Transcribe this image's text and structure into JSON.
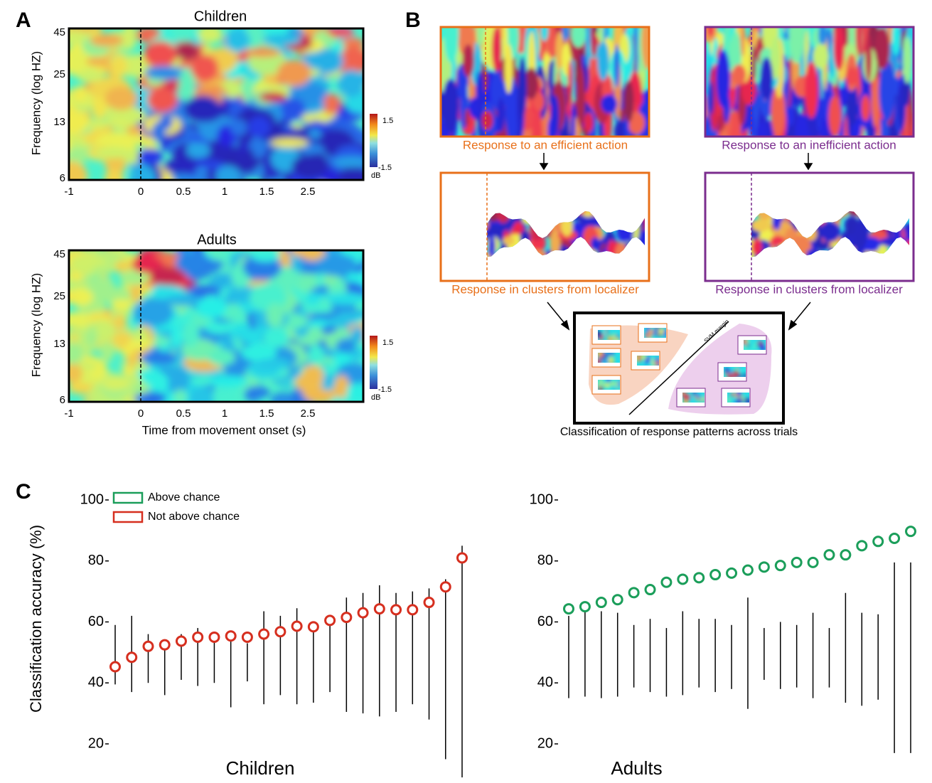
{
  "panel_labels": [
    "A",
    "B",
    "C"
  ],
  "panel_a": {
    "plots": [
      {
        "title": "Children"
      },
      {
        "title": "Adults"
      }
    ],
    "ylabel": "Frequency (log HZ)",
    "yticks": [
      45,
      25,
      13,
      6
    ],
    "xticks": [
      -1,
      0,
      0.5,
      1,
      1.5,
      2.5
    ],
    "xlabel": "Time from movement onset (s)",
    "colorbar": {
      "max": 1.5,
      "min": -1.5,
      "unit": "dB"
    }
  },
  "panel_b": {
    "efficient": "Response to an efficient action",
    "inefficient": "Response to an inefficient action",
    "clusters_efficient": "Response in clusters from localizer",
    "clusters_inefficient": "Response in clusters from localizer",
    "svm": "SVM margin",
    "caption": "Classification of response patterns across trials"
  },
  "chart_data": [
    {
      "type": "scatter",
      "xlabel": "Children",
      "ylabel": "Classification accuracy (%)",
      "ylim": [
        9,
        105
      ],
      "yticks": [
        20,
        40,
        60,
        80,
        100
      ],
      "legend": [
        {
          "name": "Above chance",
          "color": "#1b9e5a"
        },
        {
          "name": "Not above chance",
          "color": "#d62f1f"
        }
      ],
      "series": [
        {
          "color": "#d62f1f",
          "values": [
            45.3,
            48.4,
            52,
            52.5,
            53.7,
            55,
            55,
            55.4,
            55,
            56,
            56.8,
            58.6,
            58.4,
            60.5,
            61.5,
            63,
            64.3,
            64,
            64,
            66.4,
            71.5,
            81
          ],
          "low": [
            39.5,
            37,
            40,
            36,
            41,
            39,
            40,
            32,
            40.5,
            33,
            36,
            33,
            33.5,
            37,
            30.5,
            30,
            29,
            30.5,
            33,
            28,
            15,
            9
          ],
          "high": [
            59,
            62,
            56,
            53,
            56,
            58,
            56,
            55,
            53,
            63.5,
            62,
            64.5,
            60,
            62,
            68,
            69.5,
            72,
            69.5,
            70,
            71,
            74,
            85
          ]
        }
      ]
    },
    {
      "type": "scatter",
      "xlabel": "Adults",
      "ylim": [
        9,
        105
      ],
      "yticks": [
        20,
        40,
        60,
        80,
        100
      ],
      "series": [
        {
          "color": "#1b9e5a",
          "values": [
            64.3,
            65,
            66.4,
            67.3,
            69.6,
            70.6,
            73,
            74,
            74.5,
            75.5,
            76,
            77,
            78,
            78.5,
            79.5,
            79.5,
            82,
            82,
            85,
            86.4,
            87.4,
            89.7
          ],
          "low": [
            35,
            35.5,
            35,
            35.5,
            38.5,
            37,
            35.5,
            36,
            38.5,
            37,
            38,
            31.5,
            41,
            38,
            38.5,
            35,
            38.5,
            33.5,
            32.5,
            34.5,
            17,
            17
          ],
          "high": [
            62,
            63.5,
            63.5,
            63,
            59,
            61,
            58,
            63.5,
            61,
            61,
            59,
            68,
            58,
            60,
            59,
            63,
            58,
            69.5,
            63,
            62.5,
            79.5,
            79.5
          ]
        }
      ]
    }
  ]
}
